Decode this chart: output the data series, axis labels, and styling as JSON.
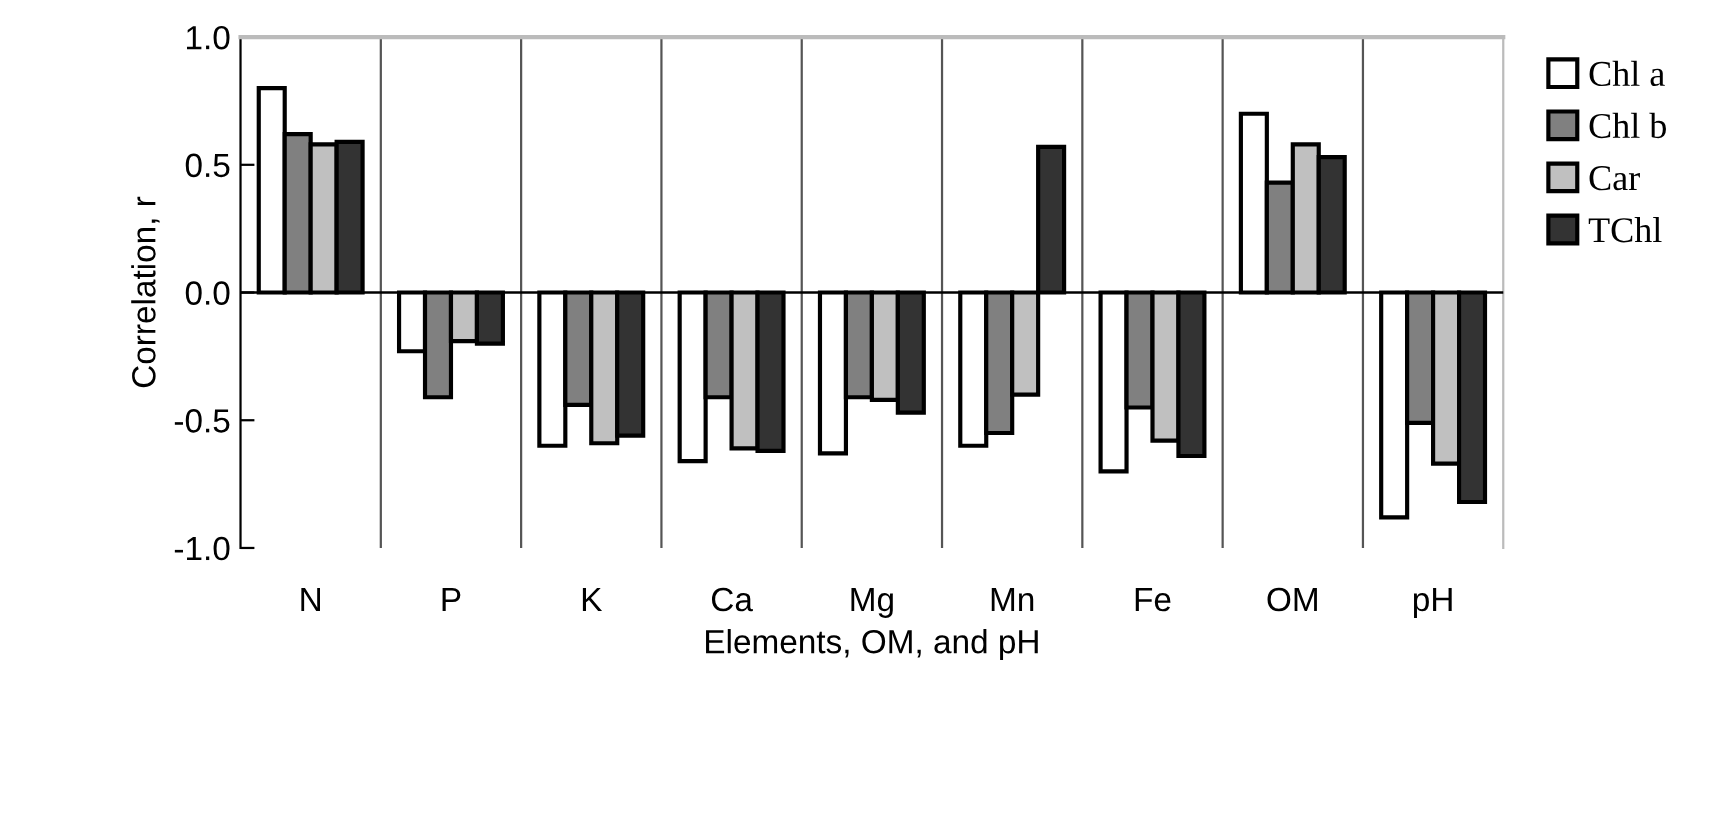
{
  "chart_data": {
    "type": "bar",
    "xlabel": "Elements, OM, and pH",
    "ylabel": "Correlation, r",
    "categories": [
      "N",
      "P",
      "K",
      "Ca",
      "Mg",
      "Mn",
      "Fe",
      "OM",
      "pH"
    ],
    "series": [
      {
        "name": "Chl a",
        "color": "#ffffff",
        "values": [
          0.8,
          -0.23,
          -0.6,
          -0.66,
          -0.63,
          -0.6,
          -0.7,
          0.7,
          -0.88
        ]
      },
      {
        "name": "Chl b",
        "color": "#808080",
        "values": [
          0.62,
          -0.41,
          -0.44,
          -0.41,
          -0.41,
          -0.55,
          -0.45,
          0.43,
          -0.51
        ]
      },
      {
        "name": "Car",
        "color": "#c0c0c0",
        "values": [
          0.58,
          -0.19,
          -0.59,
          -0.61,
          -0.42,
          -0.4,
          -0.58,
          0.58,
          -0.67
        ]
      },
      {
        "name": "TChl",
        "color": "#333333",
        "values": [
          0.59,
          -0.2,
          -0.56,
          -0.62,
          -0.47,
          0.57,
          -0.64,
          0.53,
          -0.82
        ]
      }
    ],
    "ylim": [
      -1.0,
      1.0
    ],
    "yticks": [
      {
        "value": -1.0,
        "label": "-1.0"
      },
      {
        "value": -0.5,
        "label": "-0.5"
      },
      {
        "value": 0.0,
        "label": "0.0"
      },
      {
        "value": 0.5,
        "label": "0.5"
      },
      {
        "value": 1.0,
        "label": "1.0"
      }
    ],
    "grid": "x",
    "legend": "right"
  }
}
